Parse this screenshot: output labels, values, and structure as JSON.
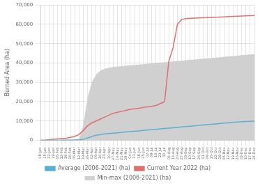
{
  "chart_data": {
    "type": "line",
    "ylabel": "Burned Area (ha)",
    "categories": [
      "08-Jan",
      "15-Jan",
      "22-Jan",
      "29-Jan",
      "05-Feb",
      "12-Feb",
      "19-Feb",
      "26-Feb",
      "05-Mar",
      "12-Mar",
      "19-Mar",
      "26-Mar",
      "02-Apr",
      "09-Apr",
      "16-Apr",
      "23-Apr",
      "30-Apr",
      "07-May",
      "14-May",
      "21-May",
      "28-May",
      "04-Jun",
      "11-Jun",
      "18-Jun",
      "25-Jun",
      "02-Jul",
      "09-Jul",
      "16-Jul",
      "23-Jul",
      "30-Jul",
      "06-Aug",
      "13-Aug",
      "20-Aug",
      "27-Aug",
      "03-Sep",
      "10-Sep",
      "17-Sep",
      "24-Sep",
      "01-Oct",
      "08-Oct",
      "15-Oct",
      "22-Oct",
      "29-Oct",
      "05-Nov",
      "12-Nov",
      "19-Nov",
      "26-Nov",
      "03-Dec",
      "10-Dec",
      "17-Dec",
      "24-Dec"
    ],
    "series": [
      {
        "name": "Min-max (2006-2021) (ha)",
        "type": "band",
        "color": "#d0d0d0",
        "low": [
          0,
          0,
          0,
          0,
          0,
          0,
          0,
          0,
          0,
          0,
          0,
          0,
          0,
          0,
          0,
          0,
          0,
          0,
          0,
          0,
          0,
          0,
          0,
          0,
          0,
          0,
          0,
          0,
          0,
          0,
          0,
          0,
          0,
          0,
          0,
          0,
          0,
          0,
          0,
          0,
          0,
          0,
          0,
          0,
          0,
          0,
          0,
          0,
          0,
          0,
          0
        ],
        "values": [
          0,
          0,
          50,
          100,
          150,
          200,
          250,
          300,
          400,
          600,
          8000,
          22000,
          30000,
          34000,
          36000,
          37000,
          37500,
          38000,
          38200,
          38400,
          38600,
          38800,
          39000,
          39200,
          39400,
          39600,
          39800,
          40000,
          40200,
          40400,
          40600,
          40800,
          41000,
          41200,
          41400,
          41600,
          41800,
          42000,
          42200,
          42400,
          42600,
          42800,
          43000,
          43200,
          43400,
          43600,
          43800,
          44000,
          44200,
          44400,
          44600
        ]
      },
      {
        "name": "Average (2006-2021) (ha)",
        "type": "line",
        "color": "#5baed1",
        "values": [
          0,
          0,
          10,
          20,
          30,
          50,
          80,
          100,
          150,
          200,
          500,
          1200,
          2000,
          2600,
          3000,
          3300,
          3500,
          3700,
          3900,
          4100,
          4300,
          4500,
          4700,
          4900,
          5100,
          5300,
          5500,
          5700,
          5900,
          6100,
          6300,
          6500,
          6700,
          6900,
          7100,
          7300,
          7500,
          7700,
          7900,
          8100,
          8300,
          8500,
          8700,
          8900,
          9100,
          9300,
          9500,
          9600,
          9700,
          9800,
          9900
        ]
      },
      {
        "name": "Current Year 2022 (ha)",
        "type": "line",
        "color": "#e07070",
        "values": [
          0,
          100,
          300,
          500,
          700,
          900,
          1100,
          1500,
          2000,
          3000,
          5000,
          7500,
          9000,
          10000,
          11000,
          12000,
          13000,
          14000,
          14500,
          15000,
          15500,
          16000,
          16300,
          16600,
          17000,
          17300,
          17600,
          18000,
          19000,
          20000,
          41000,
          48000,
          60000,
          62500,
          63000,
          63100,
          63200,
          63300,
          63400,
          63500,
          63600,
          63700,
          63800,
          63900,
          64000,
          64100,
          64200,
          64300,
          64400,
          64500,
          64600
        ]
      }
    ],
    "ylim": [
      0,
      70000
    ],
    "yticks": [
      0,
      {
        "value": 10000,
        "label": "10,000"
      },
      {
        "value": 20000,
        "label": "20,000"
      },
      {
        "value": 30000,
        "label": "30,000"
      },
      {
        "value": 40000,
        "label": "40,000"
      },
      {
        "value": 50000,
        "label": "50,000"
      },
      {
        "value": 60000,
        "label": "60,000"
      },
      {
        "value": 70000,
        "label": "70,000"
      }
    ],
    "grid": true,
    "legend": "bottom"
  }
}
